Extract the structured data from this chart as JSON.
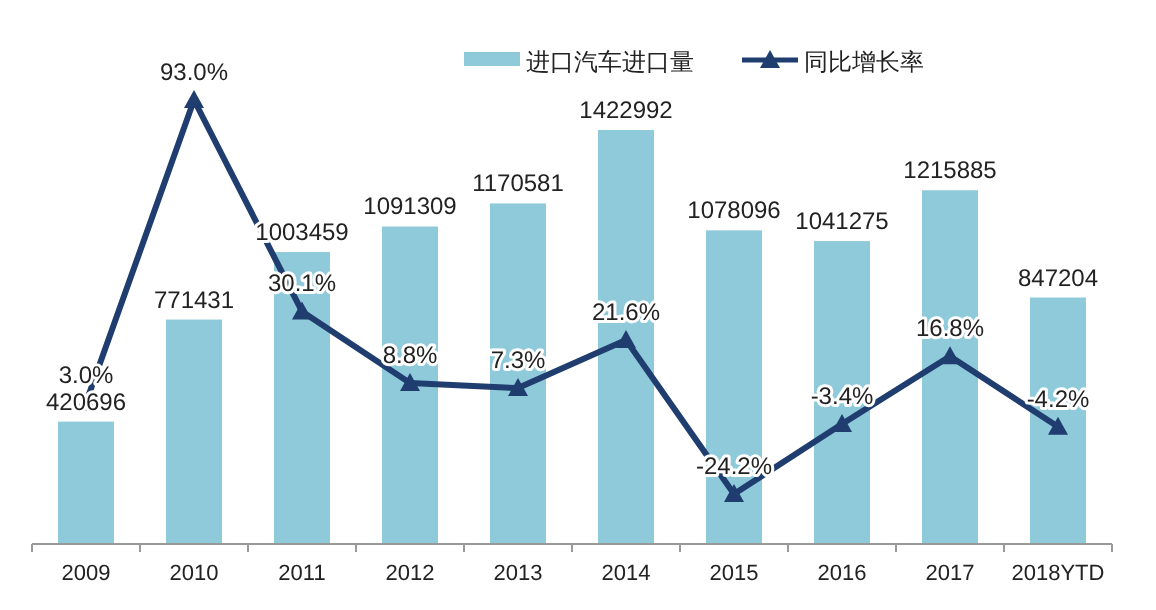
{
  "chart_data": {
    "type": "bar",
    "categories": [
      "2009",
      "2010",
      "2011",
      "2012",
      "2013",
      "2014",
      "2015",
      "2016",
      "2017",
      "2018YTD"
    ],
    "series": [
      {
        "name": "进口汽车进口量",
        "color": "#8fcadb",
        "values": [
          420696,
          771431,
          1003459,
          1091309,
          1170581,
          1422992,
          1078096,
          1041275,
          1215885,
          847204
        ],
        "value_labels": [
          "420696",
          "771431",
          "1003459",
          "1091309",
          "1170581",
          "1422992",
          "1078096",
          "1041275",
          "1215885",
          "847204"
        ]
      },
      {
        "name": "同比增长率",
        "type": "line",
        "axis": "y2",
        "color": "#1f3d6e",
        "marker": "triangle",
        "values": [
          3.0,
          93.0,
          30.1,
          8.8,
          7.3,
          21.6,
          -24.2,
          -3.4,
          16.8,
          -4.2
        ],
        "value_labels": [
          "3.0%",
          "93.0%",
          "30.1%",
          "8.8%",
          "7.3%",
          "21.6%",
          "-24.2%",
          "-3.4%",
          "16.8%",
          "-4.2%"
        ]
      }
    ],
    "legend": "top",
    "tick_labels": "x"
  }
}
